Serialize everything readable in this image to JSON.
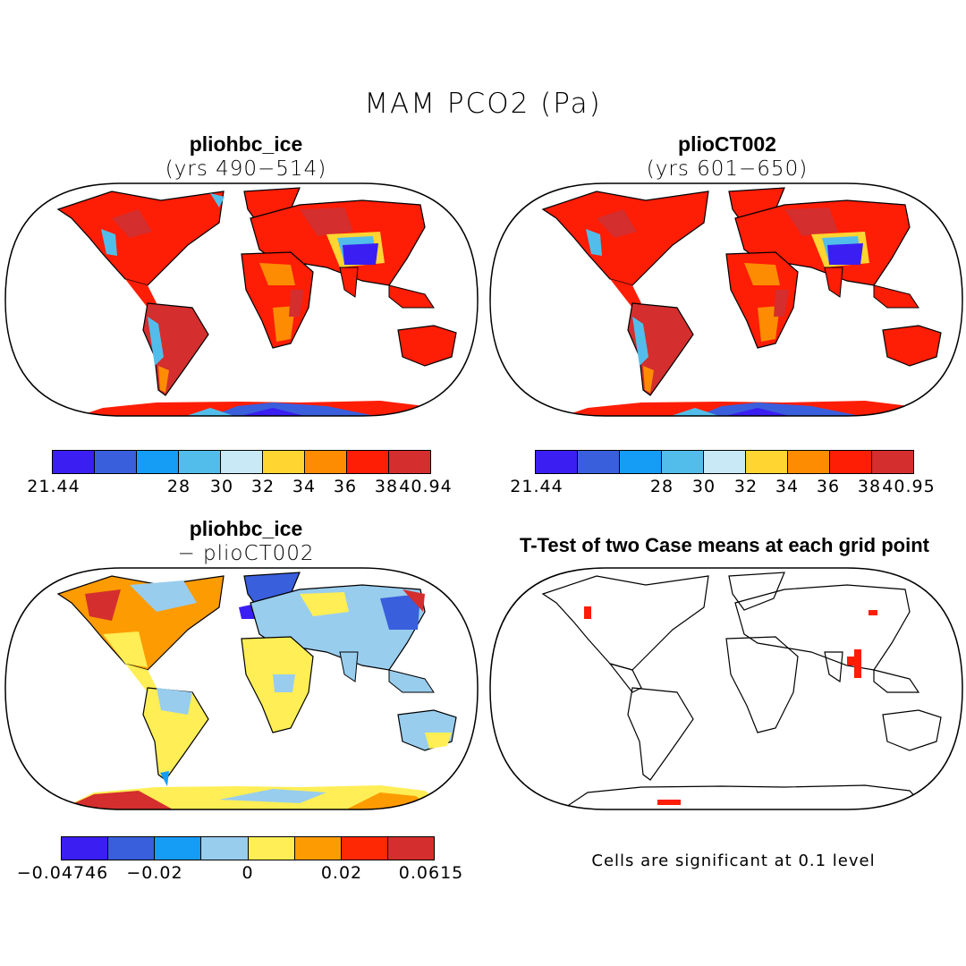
{
  "title": "MAM PCO2 (Pa)",
  "colors": {
    "seq": [
      "#3b1ef2",
      "#3a5fdc",
      "#159cf5",
      "#52bdea",
      "#c8e9f5",
      "#fed531",
      "#fd8c03",
      "#fe1d05",
      "#d42e2e"
    ],
    "div": [
      "#3b1ef2",
      "#3a5fdc",
      "#159cf5",
      "#98cdee",
      "#ffee55",
      "#fd9b03",
      "#fe2805",
      "#d42e2e"
    ],
    "sig": "#fe1d05"
  },
  "panels": {
    "p1": {
      "title": "pliohbc_ice",
      "subtitle": "(yrs 490−514)",
      "ticks": [
        "21.44",
        "28",
        "30",
        "32",
        "34",
        "36",
        "38",
        "40.94"
      ]
    },
    "p2": {
      "title": "plioCT002",
      "subtitle": "(yrs 601−650)",
      "ticks": [
        "21.44",
        "28",
        "30",
        "32",
        "34",
        "36",
        "38",
        "40.95"
      ]
    },
    "p3": {
      "title": "pliohbc_ice",
      "subtitle": "− plioCT002",
      "ticks": [
        "−0.04746",
        "−0.02",
        "0",
        "0.02",
        "0.0615"
      ]
    },
    "p4": {
      "title": "T-Test of two Case means at each grid point",
      "note": "Cells are significant at 0.1 level"
    }
  }
}
